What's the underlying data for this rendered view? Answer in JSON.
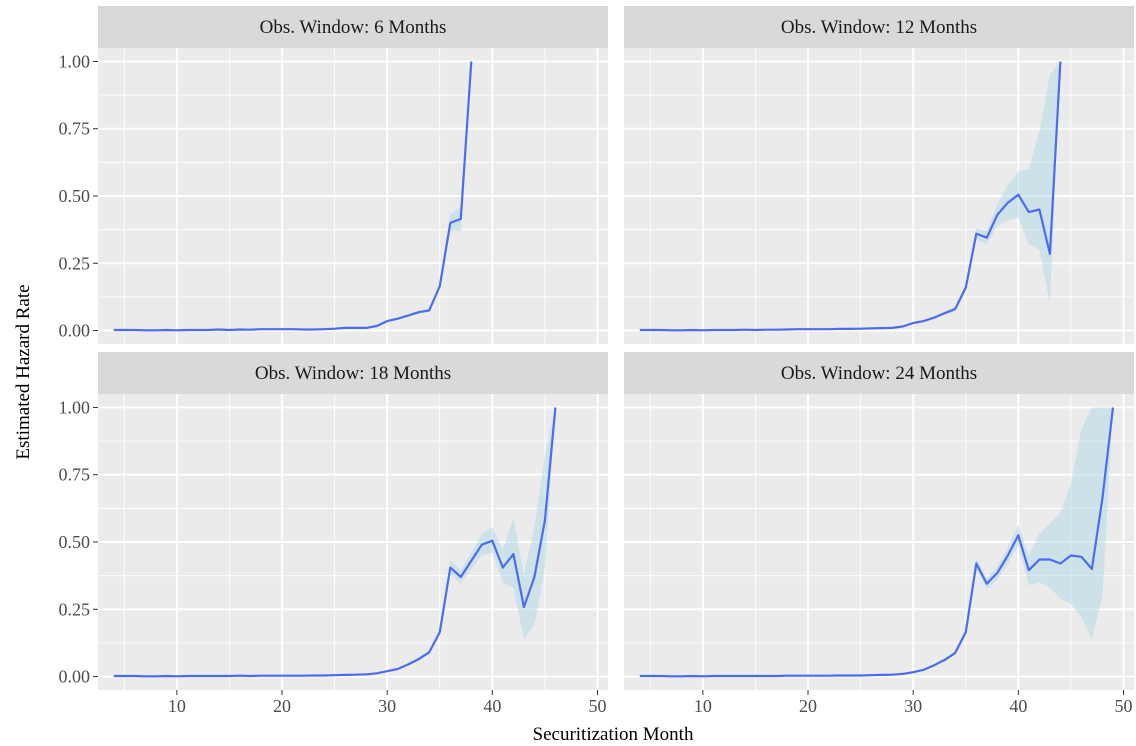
{
  "chart_data": {
    "type": "line",
    "xlabel": "Securitization Month",
    "ylabel": "Estimated Hazard Rate",
    "xlim": [
      2.5,
      51
    ],
    "ylim": [
      -0.05,
      1.05
    ],
    "x_ticks": [
      10,
      20,
      30,
      40,
      50
    ],
    "y_ticks": [
      0.0,
      0.25,
      0.5,
      0.75,
      1.0
    ],
    "y_tick_labels": [
      "0.00",
      "0.25",
      "0.50",
      "0.75",
      "1.00"
    ],
    "grid": true,
    "line_color": "#4a6cf0",
    "ribbon_color": "#add8e6",
    "panel_background": "#ebebeb",
    "strip_background": "#d9d9d9",
    "panels": [
      {
        "title": "Obs. Window: 6 Months",
        "x": [
          4,
          5,
          6,
          7,
          8,
          9,
          10,
          11,
          12,
          13,
          14,
          15,
          16,
          17,
          18,
          19,
          20,
          21,
          22,
          23,
          24,
          25,
          26,
          27,
          28,
          29,
          30,
          31,
          32,
          33,
          34,
          35,
          36,
          37,
          38
        ],
        "y": [
          0.002,
          0.002,
          0.002,
          0.001,
          0.001,
          0.002,
          0.001,
          0.002,
          0.002,
          0.002,
          0.004,
          0.002,
          0.004,
          0.003,
          0.005,
          0.005,
          0.005,
          0.005,
          0.004,
          0.004,
          0.005,
          0.007,
          0.01,
          0.01,
          0.01,
          0.017,
          0.035,
          0.044,
          0.056,
          0.068,
          0.075,
          0.165,
          0.4,
          0.415,
          1.0
        ],
        "lower": [
          0.001,
          0.001,
          0.001,
          0.0,
          0.0,
          0.001,
          0.0,
          0.001,
          0.001,
          0.001,
          0.003,
          0.001,
          0.003,
          0.002,
          0.004,
          0.004,
          0.004,
          0.004,
          0.003,
          0.003,
          0.004,
          0.006,
          0.008,
          0.008,
          0.008,
          0.014,
          0.031,
          0.04,
          0.051,
          0.062,
          0.068,
          0.155,
          0.37,
          0.37,
          1.0
        ],
        "upper": [
          0.003,
          0.003,
          0.003,
          0.002,
          0.002,
          0.003,
          0.002,
          0.003,
          0.003,
          0.003,
          0.005,
          0.003,
          0.005,
          0.004,
          0.006,
          0.006,
          0.006,
          0.006,
          0.005,
          0.005,
          0.006,
          0.008,
          0.012,
          0.012,
          0.012,
          0.02,
          0.039,
          0.048,
          0.061,
          0.074,
          0.082,
          0.175,
          0.43,
          0.46,
          1.0
        ]
      },
      {
        "title": "Obs. Window: 12 Months",
        "x": [
          4,
          5,
          6,
          7,
          8,
          9,
          10,
          11,
          12,
          13,
          14,
          15,
          16,
          17,
          18,
          19,
          20,
          21,
          22,
          23,
          24,
          25,
          26,
          27,
          28,
          29,
          30,
          31,
          32,
          33,
          34,
          35,
          36,
          37,
          38,
          39,
          40,
          41,
          42,
          43,
          44
        ],
        "y": [
          0.002,
          0.002,
          0.002,
          0.001,
          0.001,
          0.002,
          0.001,
          0.002,
          0.002,
          0.002,
          0.003,
          0.002,
          0.003,
          0.003,
          0.004,
          0.005,
          0.005,
          0.005,
          0.005,
          0.006,
          0.006,
          0.007,
          0.008,
          0.009,
          0.01,
          0.015,
          0.028,
          0.035,
          0.048,
          0.065,
          0.08,
          0.16,
          0.36,
          0.345,
          0.43,
          0.475,
          0.505,
          0.44,
          0.45,
          0.285,
          1.0
        ],
        "lower": [
          0.001,
          0.001,
          0.001,
          0.0,
          0.0,
          0.001,
          0.0,
          0.001,
          0.001,
          0.001,
          0.002,
          0.001,
          0.002,
          0.002,
          0.003,
          0.004,
          0.004,
          0.004,
          0.004,
          0.005,
          0.005,
          0.006,
          0.007,
          0.008,
          0.009,
          0.013,
          0.025,
          0.031,
          0.043,
          0.058,
          0.072,
          0.15,
          0.34,
          0.32,
          0.39,
          0.41,
          0.42,
          0.32,
          0.3,
          0.1,
          1.0
        ],
        "upper": [
          0.003,
          0.003,
          0.003,
          0.002,
          0.002,
          0.003,
          0.002,
          0.003,
          0.003,
          0.003,
          0.004,
          0.003,
          0.004,
          0.004,
          0.005,
          0.006,
          0.006,
          0.006,
          0.006,
          0.007,
          0.007,
          0.008,
          0.009,
          0.01,
          0.011,
          0.017,
          0.031,
          0.039,
          0.053,
          0.072,
          0.088,
          0.17,
          0.38,
          0.37,
          0.47,
          0.54,
          0.59,
          0.6,
          0.74,
          0.95,
          1.0
        ]
      },
      {
        "title": "Obs. Window: 18 Months",
        "x": [
          4,
          5,
          6,
          7,
          8,
          9,
          10,
          11,
          12,
          13,
          14,
          15,
          16,
          17,
          18,
          19,
          20,
          21,
          22,
          23,
          24,
          25,
          26,
          27,
          28,
          29,
          30,
          31,
          32,
          33,
          34,
          35,
          36,
          37,
          38,
          39,
          40,
          41,
          42,
          43,
          44,
          45,
          46
        ],
        "y": [
          0.002,
          0.002,
          0.002,
          0.001,
          0.001,
          0.002,
          0.001,
          0.002,
          0.002,
          0.002,
          0.002,
          0.002,
          0.003,
          0.002,
          0.003,
          0.003,
          0.003,
          0.003,
          0.003,
          0.004,
          0.004,
          0.005,
          0.006,
          0.007,
          0.008,
          0.012,
          0.02,
          0.028,
          0.045,
          0.065,
          0.09,
          0.165,
          0.405,
          0.37,
          0.43,
          0.49,
          0.505,
          0.405,
          0.455,
          0.258,
          0.37,
          0.58,
          1.0
        ],
        "lower": [
          0.001,
          0.001,
          0.001,
          0.0,
          0.0,
          0.001,
          0.0,
          0.001,
          0.001,
          0.001,
          0.001,
          0.001,
          0.002,
          0.001,
          0.002,
          0.002,
          0.002,
          0.002,
          0.002,
          0.003,
          0.003,
          0.004,
          0.005,
          0.006,
          0.007,
          0.01,
          0.018,
          0.025,
          0.041,
          0.06,
          0.083,
          0.155,
          0.38,
          0.345,
          0.4,
          0.45,
          0.46,
          0.35,
          0.33,
          0.14,
          0.19,
          0.4,
          1.0
        ],
        "upper": [
          0.003,
          0.003,
          0.003,
          0.002,
          0.002,
          0.003,
          0.002,
          0.003,
          0.003,
          0.003,
          0.003,
          0.003,
          0.004,
          0.003,
          0.004,
          0.004,
          0.004,
          0.004,
          0.004,
          0.005,
          0.005,
          0.006,
          0.007,
          0.008,
          0.009,
          0.014,
          0.022,
          0.031,
          0.049,
          0.07,
          0.097,
          0.175,
          0.43,
          0.395,
          0.46,
          0.53,
          0.555,
          0.47,
          0.59,
          0.38,
          0.55,
          0.82,
          1.0
        ]
      },
      {
        "title": "Obs. Window: 24 Months",
        "x": [
          4,
          5,
          6,
          7,
          8,
          9,
          10,
          11,
          12,
          13,
          14,
          15,
          16,
          17,
          18,
          19,
          20,
          21,
          22,
          23,
          24,
          25,
          26,
          27,
          28,
          29,
          30,
          31,
          32,
          33,
          34,
          35,
          36,
          37,
          38,
          39,
          40,
          41,
          42,
          43,
          44,
          45,
          46,
          47,
          48,
          49
        ],
        "y": [
          0.002,
          0.002,
          0.002,
          0.001,
          0.001,
          0.002,
          0.001,
          0.002,
          0.002,
          0.002,
          0.002,
          0.002,
          0.002,
          0.002,
          0.003,
          0.003,
          0.003,
          0.003,
          0.003,
          0.004,
          0.004,
          0.004,
          0.005,
          0.006,
          0.007,
          0.01,
          0.016,
          0.025,
          0.042,
          0.062,
          0.088,
          0.165,
          0.42,
          0.345,
          0.385,
          0.45,
          0.525,
          0.395,
          0.435,
          0.435,
          0.42,
          0.45,
          0.445,
          0.4,
          0.665,
          1.0
        ],
        "lower": [
          0.001,
          0.001,
          0.001,
          0.0,
          0.0,
          0.001,
          0.0,
          0.001,
          0.001,
          0.001,
          0.001,
          0.001,
          0.001,
          0.001,
          0.002,
          0.002,
          0.002,
          0.002,
          0.002,
          0.003,
          0.003,
          0.003,
          0.004,
          0.005,
          0.006,
          0.008,
          0.014,
          0.022,
          0.038,
          0.057,
          0.081,
          0.155,
          0.4,
          0.325,
          0.36,
          0.42,
          0.485,
          0.34,
          0.35,
          0.33,
          0.29,
          0.27,
          0.22,
          0.14,
          0.3,
          1.0
        ],
        "upper": [
          0.003,
          0.003,
          0.003,
          0.002,
          0.002,
          0.003,
          0.002,
          0.003,
          0.003,
          0.003,
          0.003,
          0.003,
          0.003,
          0.003,
          0.004,
          0.004,
          0.004,
          0.004,
          0.004,
          0.005,
          0.005,
          0.005,
          0.006,
          0.007,
          0.008,
          0.012,
          0.018,
          0.028,
          0.046,
          0.067,
          0.095,
          0.175,
          0.44,
          0.365,
          0.41,
          0.48,
          0.565,
          0.45,
          0.53,
          0.57,
          0.61,
          0.72,
          0.92,
          1.0,
          1.0,
          1.0
        ]
      }
    ]
  }
}
